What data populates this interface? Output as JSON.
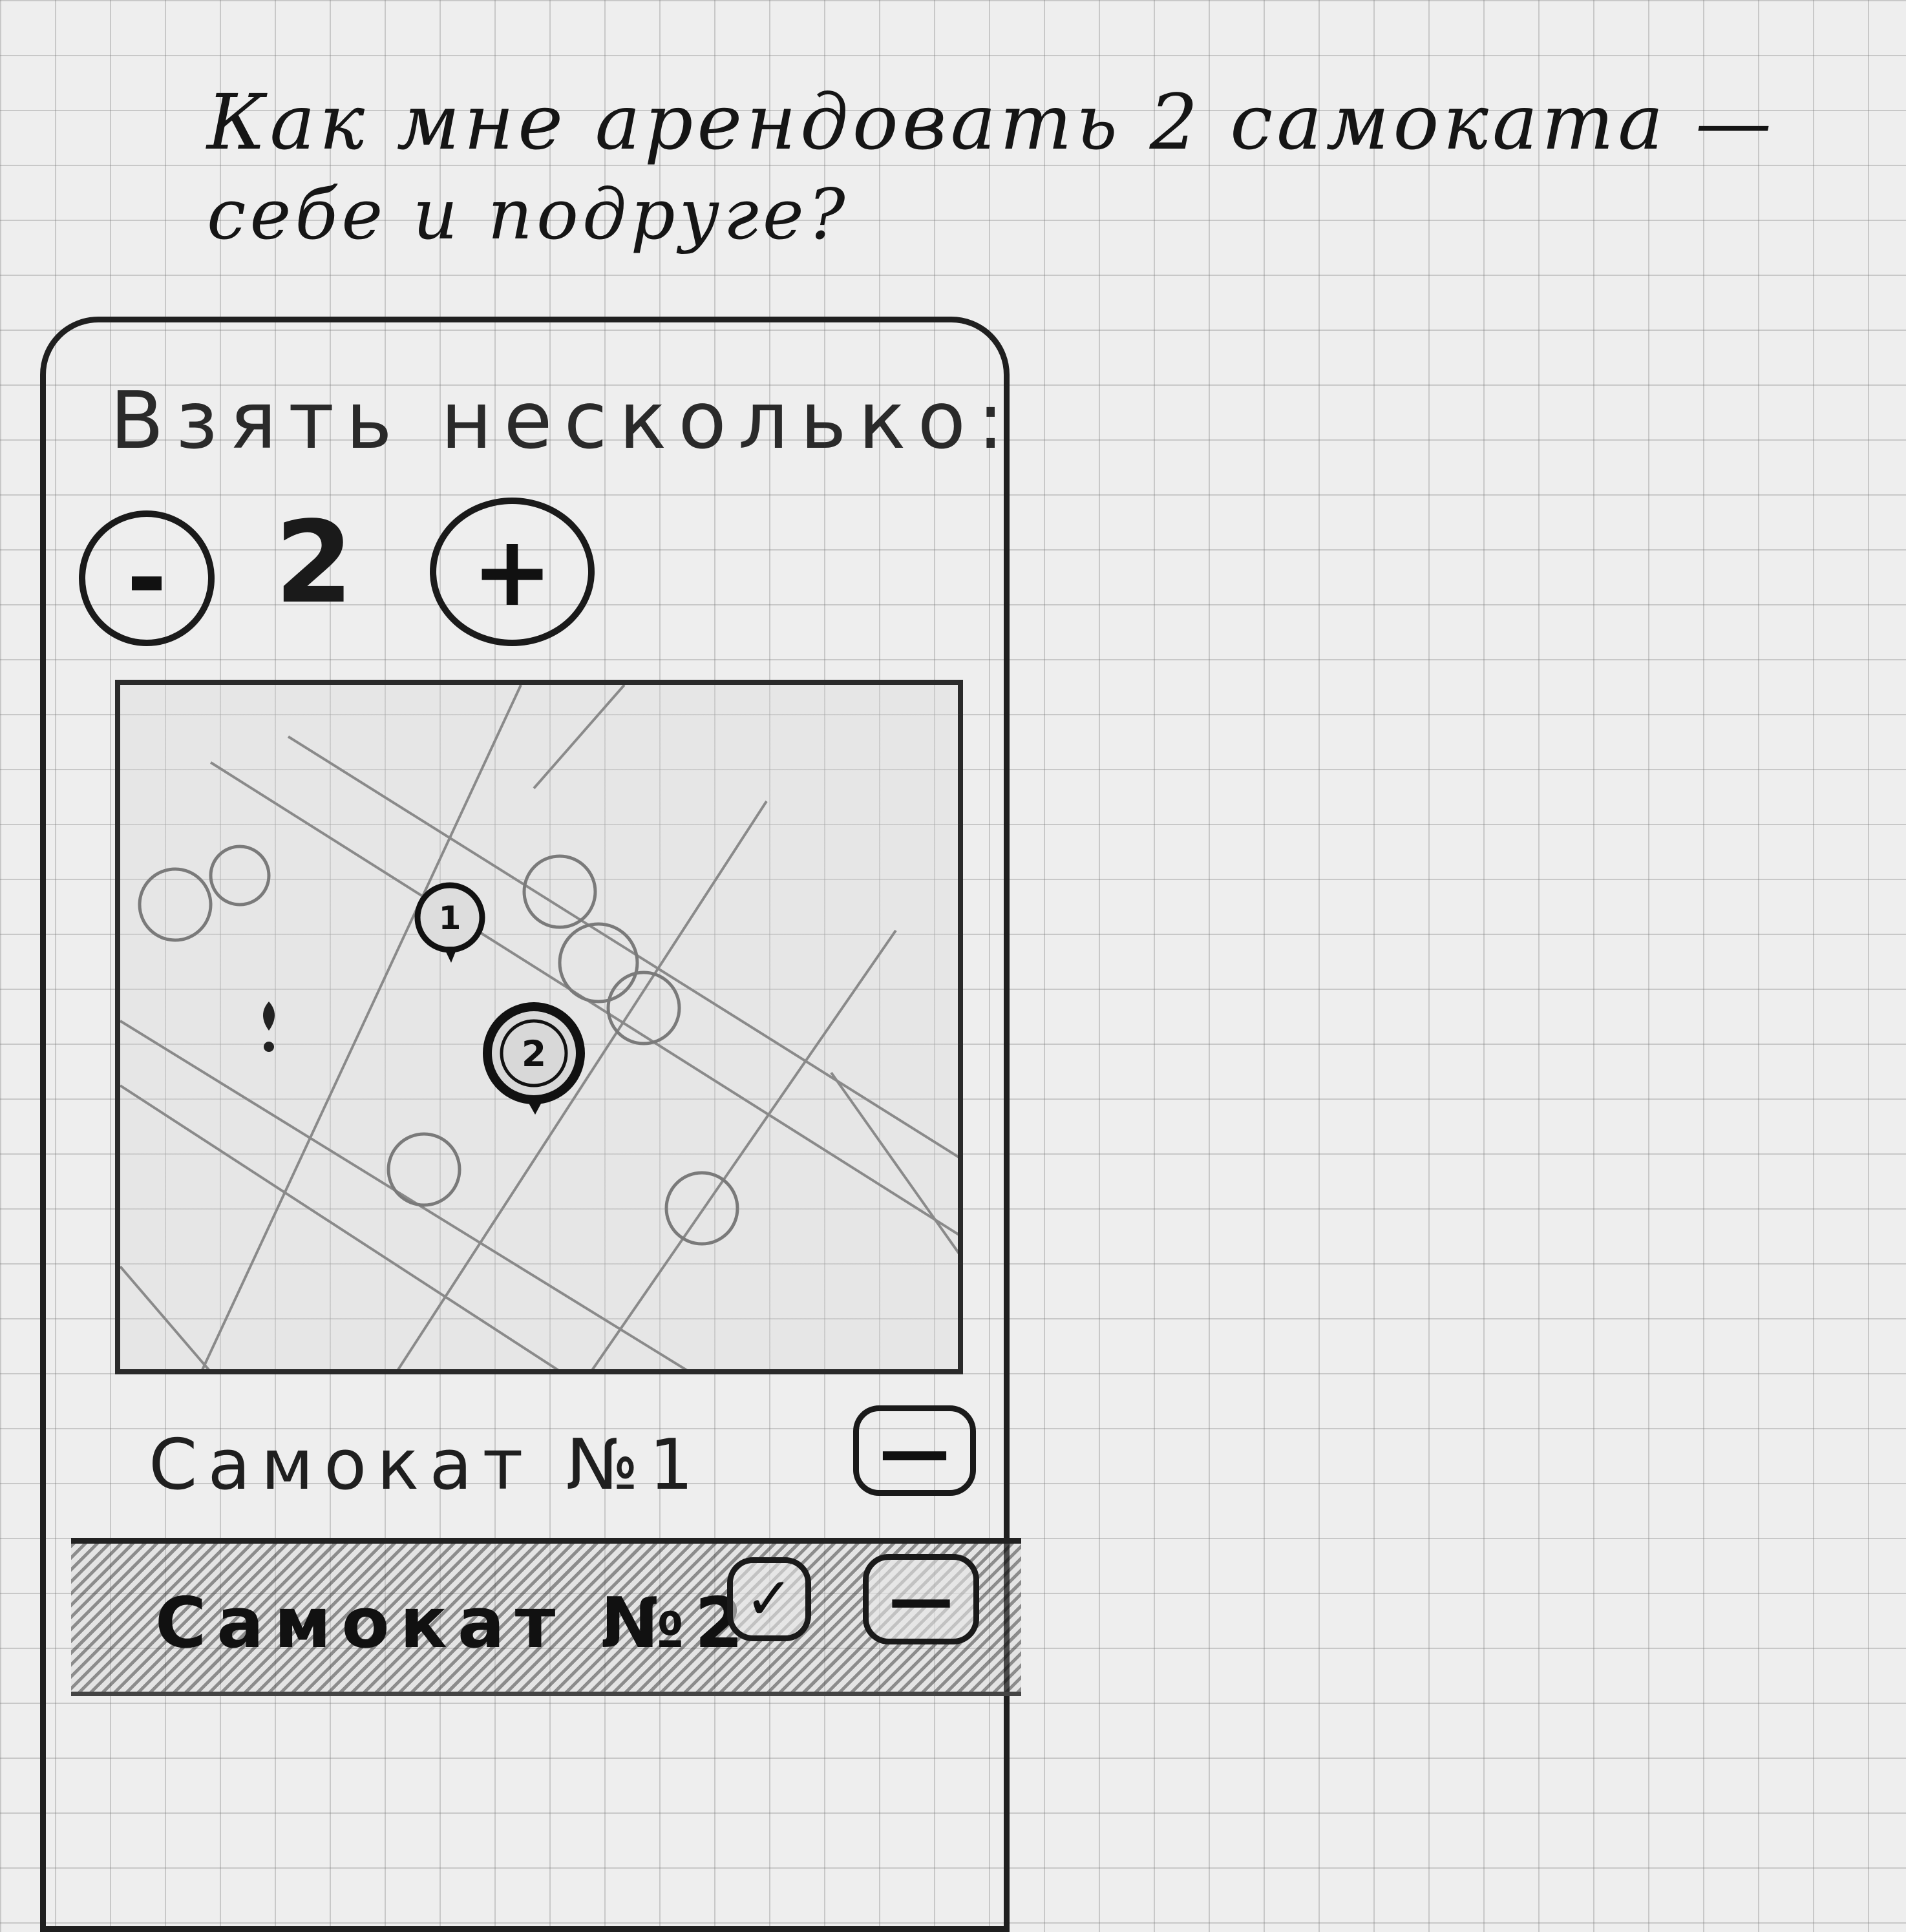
{
  "question": {
    "line1": "Как мне арендовать 2 самоката —",
    "line2": "себе и подруге?"
  },
  "screen": {
    "heading": "Взять несколько:",
    "stepper": {
      "minus_label": "-",
      "value": "2",
      "plus_label": "+"
    },
    "map": {
      "pins": [
        "1",
        "2"
      ]
    },
    "scooters": [
      {
        "label": "Самокат №1",
        "remove_label": "—",
        "selected": false
      },
      {
        "label": "Самокат №2",
        "check_label": "✓",
        "remove_label": "—",
        "selected": true
      }
    ]
  }
}
